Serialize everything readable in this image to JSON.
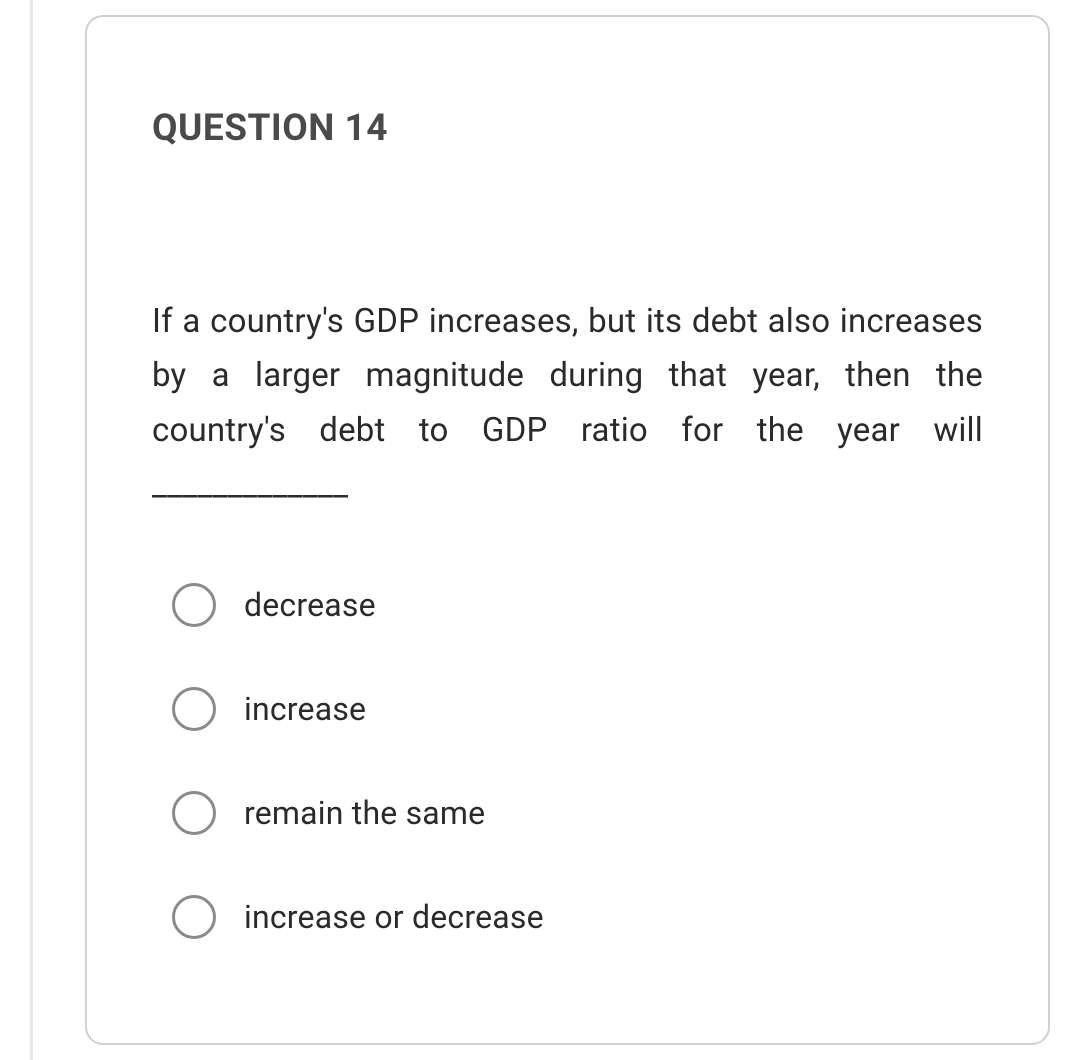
{
  "question": {
    "title": "QUESTION 14",
    "text": "If a country's GDP increases, but its debt also increases by a larger magnitude during that year, then the country's debt to GDP ratio for the year will _____________",
    "options": [
      {
        "label": "decrease"
      },
      {
        "label": "increase"
      },
      {
        "label": "remain the same"
      },
      {
        "label": "increase or decrease"
      }
    ]
  },
  "colors": {
    "card_border": "#d0d0d0",
    "title_text": "#4a4a4a",
    "body_text": "#2a2a2a",
    "radio_border": "#8a8a8a",
    "sidebar": "#e8e8e8",
    "background": "#ffffff"
  }
}
